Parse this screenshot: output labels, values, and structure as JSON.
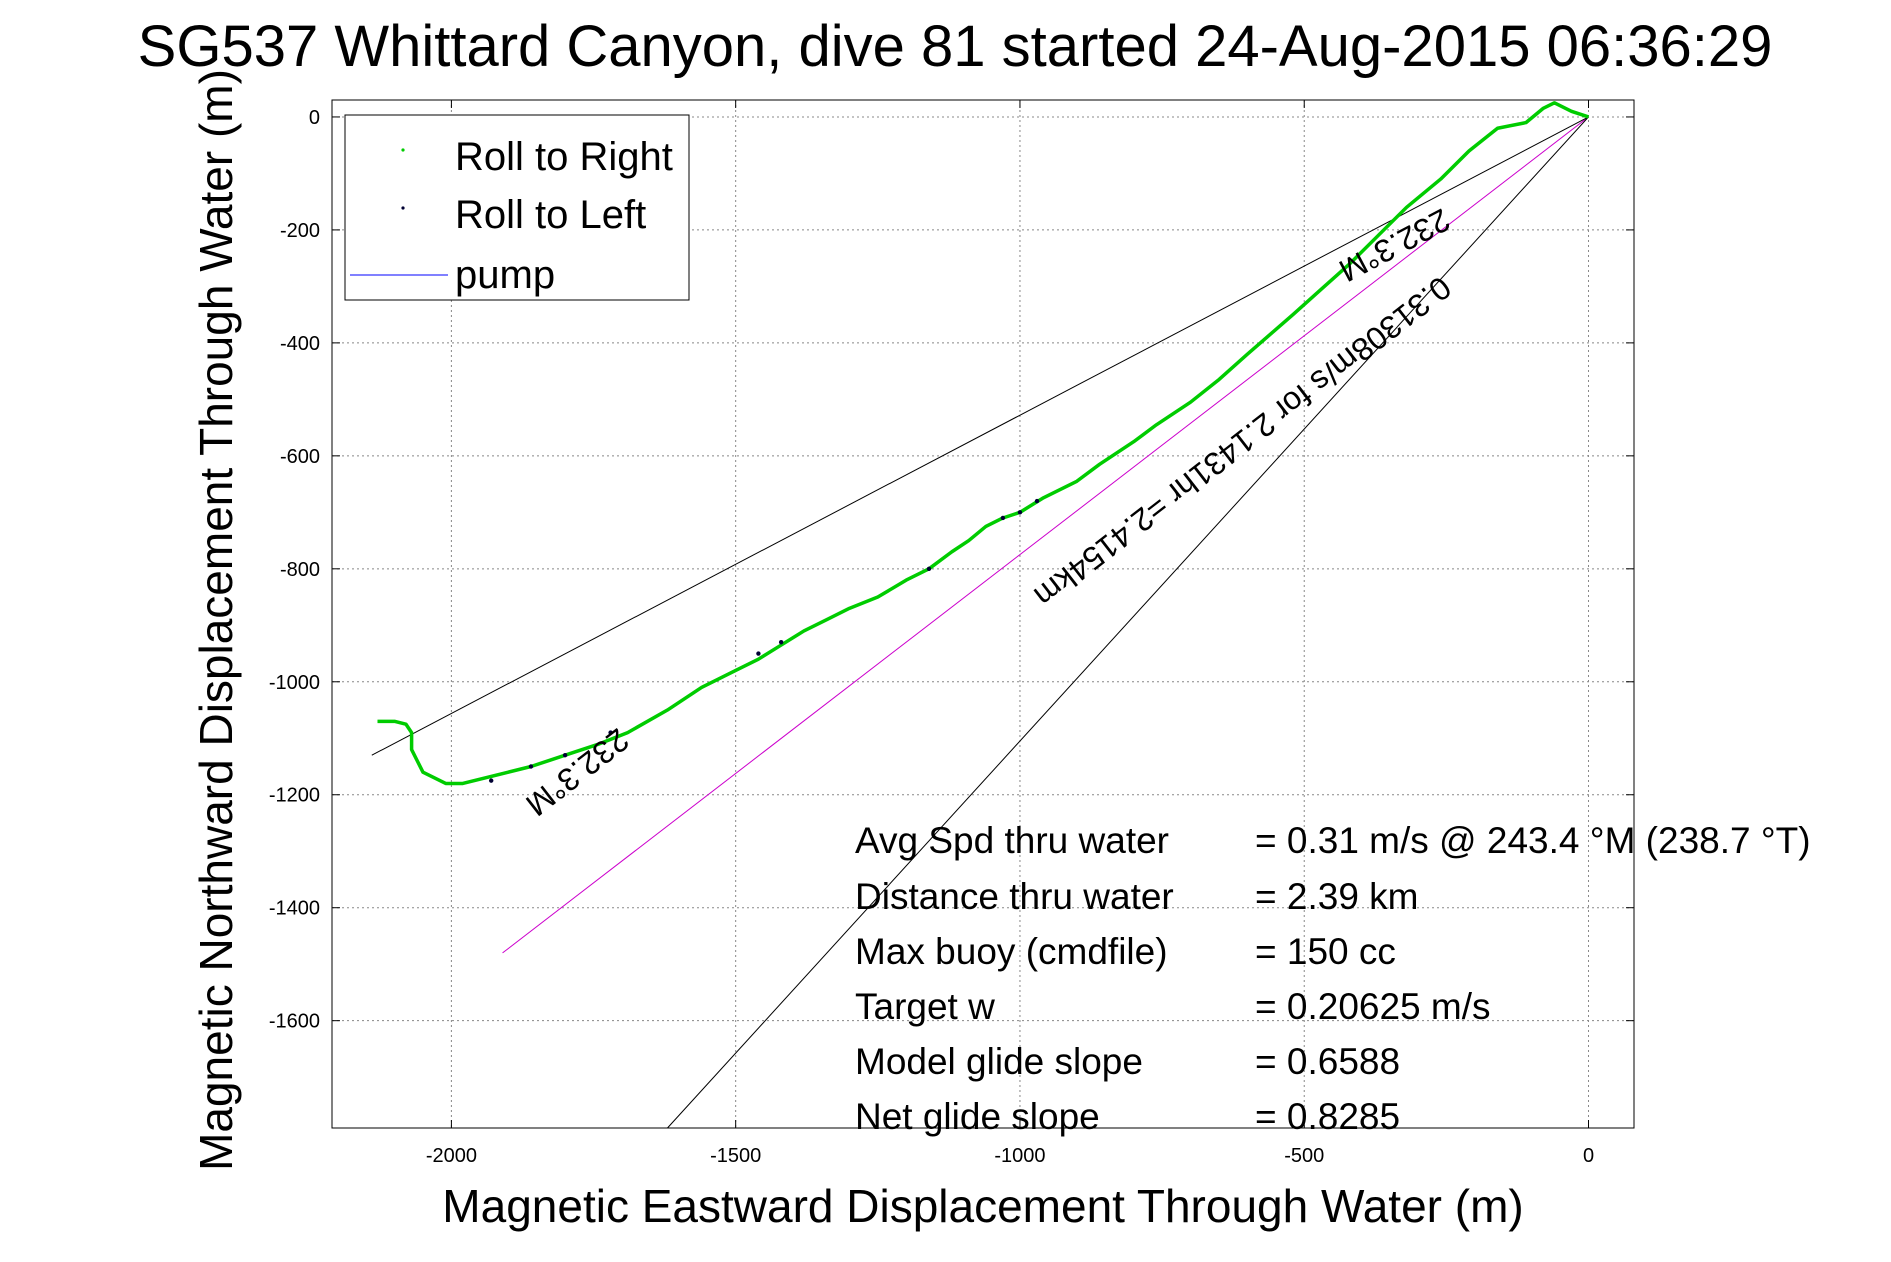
{
  "chart_data": {
    "type": "line",
    "title": "SG537 Whittard Canyon, dive 81 started 24-Aug-2015 06:36:29",
    "xlabel": "Magnetic Eastward Displacement Through Water (m)",
    "ylabel": "Magnetic Northward Displacement Through Water (m)",
    "xlim": [
      -2210,
      80
    ],
    "ylim": [
      -1790,
      30
    ],
    "xticks": [
      -2000,
      -1500,
      -1000,
      -500,
      0
    ],
    "yticks": [
      0,
      -200,
      -400,
      -600,
      -800,
      -1000,
      -1200,
      -1400,
      -1600
    ],
    "xtick_labels": [
      "-2000",
      "-1500",
      "-1000",
      "-500",
      "0"
    ],
    "ytick_labels": [
      "0",
      "-200",
      "-400",
      "-600",
      "-800",
      "-1000",
      "-1200",
      "-1400",
      "-1600"
    ],
    "grid": true,
    "legend": {
      "position": "top-left",
      "entries": [
        {
          "label": "Roll to Right",
          "color": "#00cc00",
          "marker": "dot"
        },
        {
          "label": "Roll to Left",
          "color": "#000033",
          "marker": "dot"
        },
        {
          "label": "pump",
          "color": "#0000ff",
          "marker": "line"
        }
      ]
    },
    "series": [
      {
        "name": "Roll to Right",
        "color": "#00cc00",
        "x": [
          0,
          -30,
          -60,
          -80,
          -110,
          -160,
          -210,
          -260,
          -320,
          -370,
          -420,
          -470,
          -520,
          -560,
          -600,
          -650,
          -700,
          -760,
          -800,
          -860,
          -900,
          -960,
          -1000,
          -1030,
          -1060,
          -1090,
          -1120,
          -1160,
          -1200,
          -1250,
          -1300,
          -1340,
          -1380,
          -1420,
          -1460,
          -1500,
          -1560,
          -1620,
          -1690,
          -1740,
          -1800,
          -1860,
          -1900,
          -1940,
          -1980,
          -2010,
          -2030,
          -2050,
          -2060,
          -2070,
          -2070,
          -2080,
          -2100,
          -2130
        ],
        "y": [
          0,
          10,
          25,
          15,
          -10,
          -20,
          -60,
          -110,
          -160,
          -210,
          -260,
          -305,
          -350,
          -385,
          -420,
          -465,
          -505,
          -545,
          -575,
          -615,
          -645,
          -675,
          -700,
          -710,
          -725,
          -750,
          -770,
          -800,
          -820,
          -850,
          -870,
          -890,
          -910,
          -935,
          -960,
          -980,
          -1010,
          -1050,
          -1090,
          -1110,
          -1130,
          -1150,
          -1160,
          -1170,
          -1180,
          -1180,
          -1170,
          -1160,
          -1140,
          -1120,
          -1090,
          -1075,
          -1070,
          -1070
        ]
      },
      {
        "name": "Roll to Left",
        "color": "#000033",
        "x": [
          -970,
          -1000,
          -1030,
          -1160,
          -1420,
          -1460,
          -1720,
          -1800,
          -1860,
          -1930
        ],
        "y": [
          -680,
          -700,
          -710,
          -800,
          -930,
          -950,
          -1090,
          -1130,
          -1150,
          -1175
        ]
      },
      {
        "name": "pump",
        "color": "#0000ff",
        "x": [],
        "y": []
      }
    ],
    "reference_lines": {
      "course_line": {
        "color": "#cc00cc",
        "x": [
          0,
          -1910
        ],
        "y": [
          0,
          -1480
        ]
      },
      "upper_bound": {
        "color": "#000000",
        "x": [
          0,
          -2140
        ],
        "y": [
          0,
          -1130
        ]
      },
      "lower_bound": {
        "color": "#000000",
        "x": [
          0,
          -1620
        ],
        "y": [
          0,
          -1790
        ]
      }
    },
    "annotations": [
      {
        "text": "232.3°M",
        "x": -1790,
        "y": -1145,
        "rotation": -37.8
      },
      {
        "text": "0.31308m/s for 2.1431hr =2.4154km",
        "x": -620,
        "y": -560,
        "rotation": -37.8
      },
      {
        "text": "232.3°M",
        "x": -350,
        "y": -210,
        "rotation": -27.8
      }
    ],
    "stats": [
      {
        "label": "Avg Spd thru water",
        "value": "=  0.31 m/s @ 243.4 °M (238.7 °T)"
      },
      {
        "label": "Distance thru water",
        "value": "=  2.39 km"
      },
      {
        "label": "Max buoy (cmdfile)",
        "value": "= 150 cc"
      },
      {
        "label": "Target w",
        "value": "= 0.20625 m/s"
      },
      {
        "label": "Model glide slope",
        "value": "= 0.6588"
      },
      {
        "label": "Net glide slope",
        "value": "= 0.8285"
      }
    ]
  }
}
